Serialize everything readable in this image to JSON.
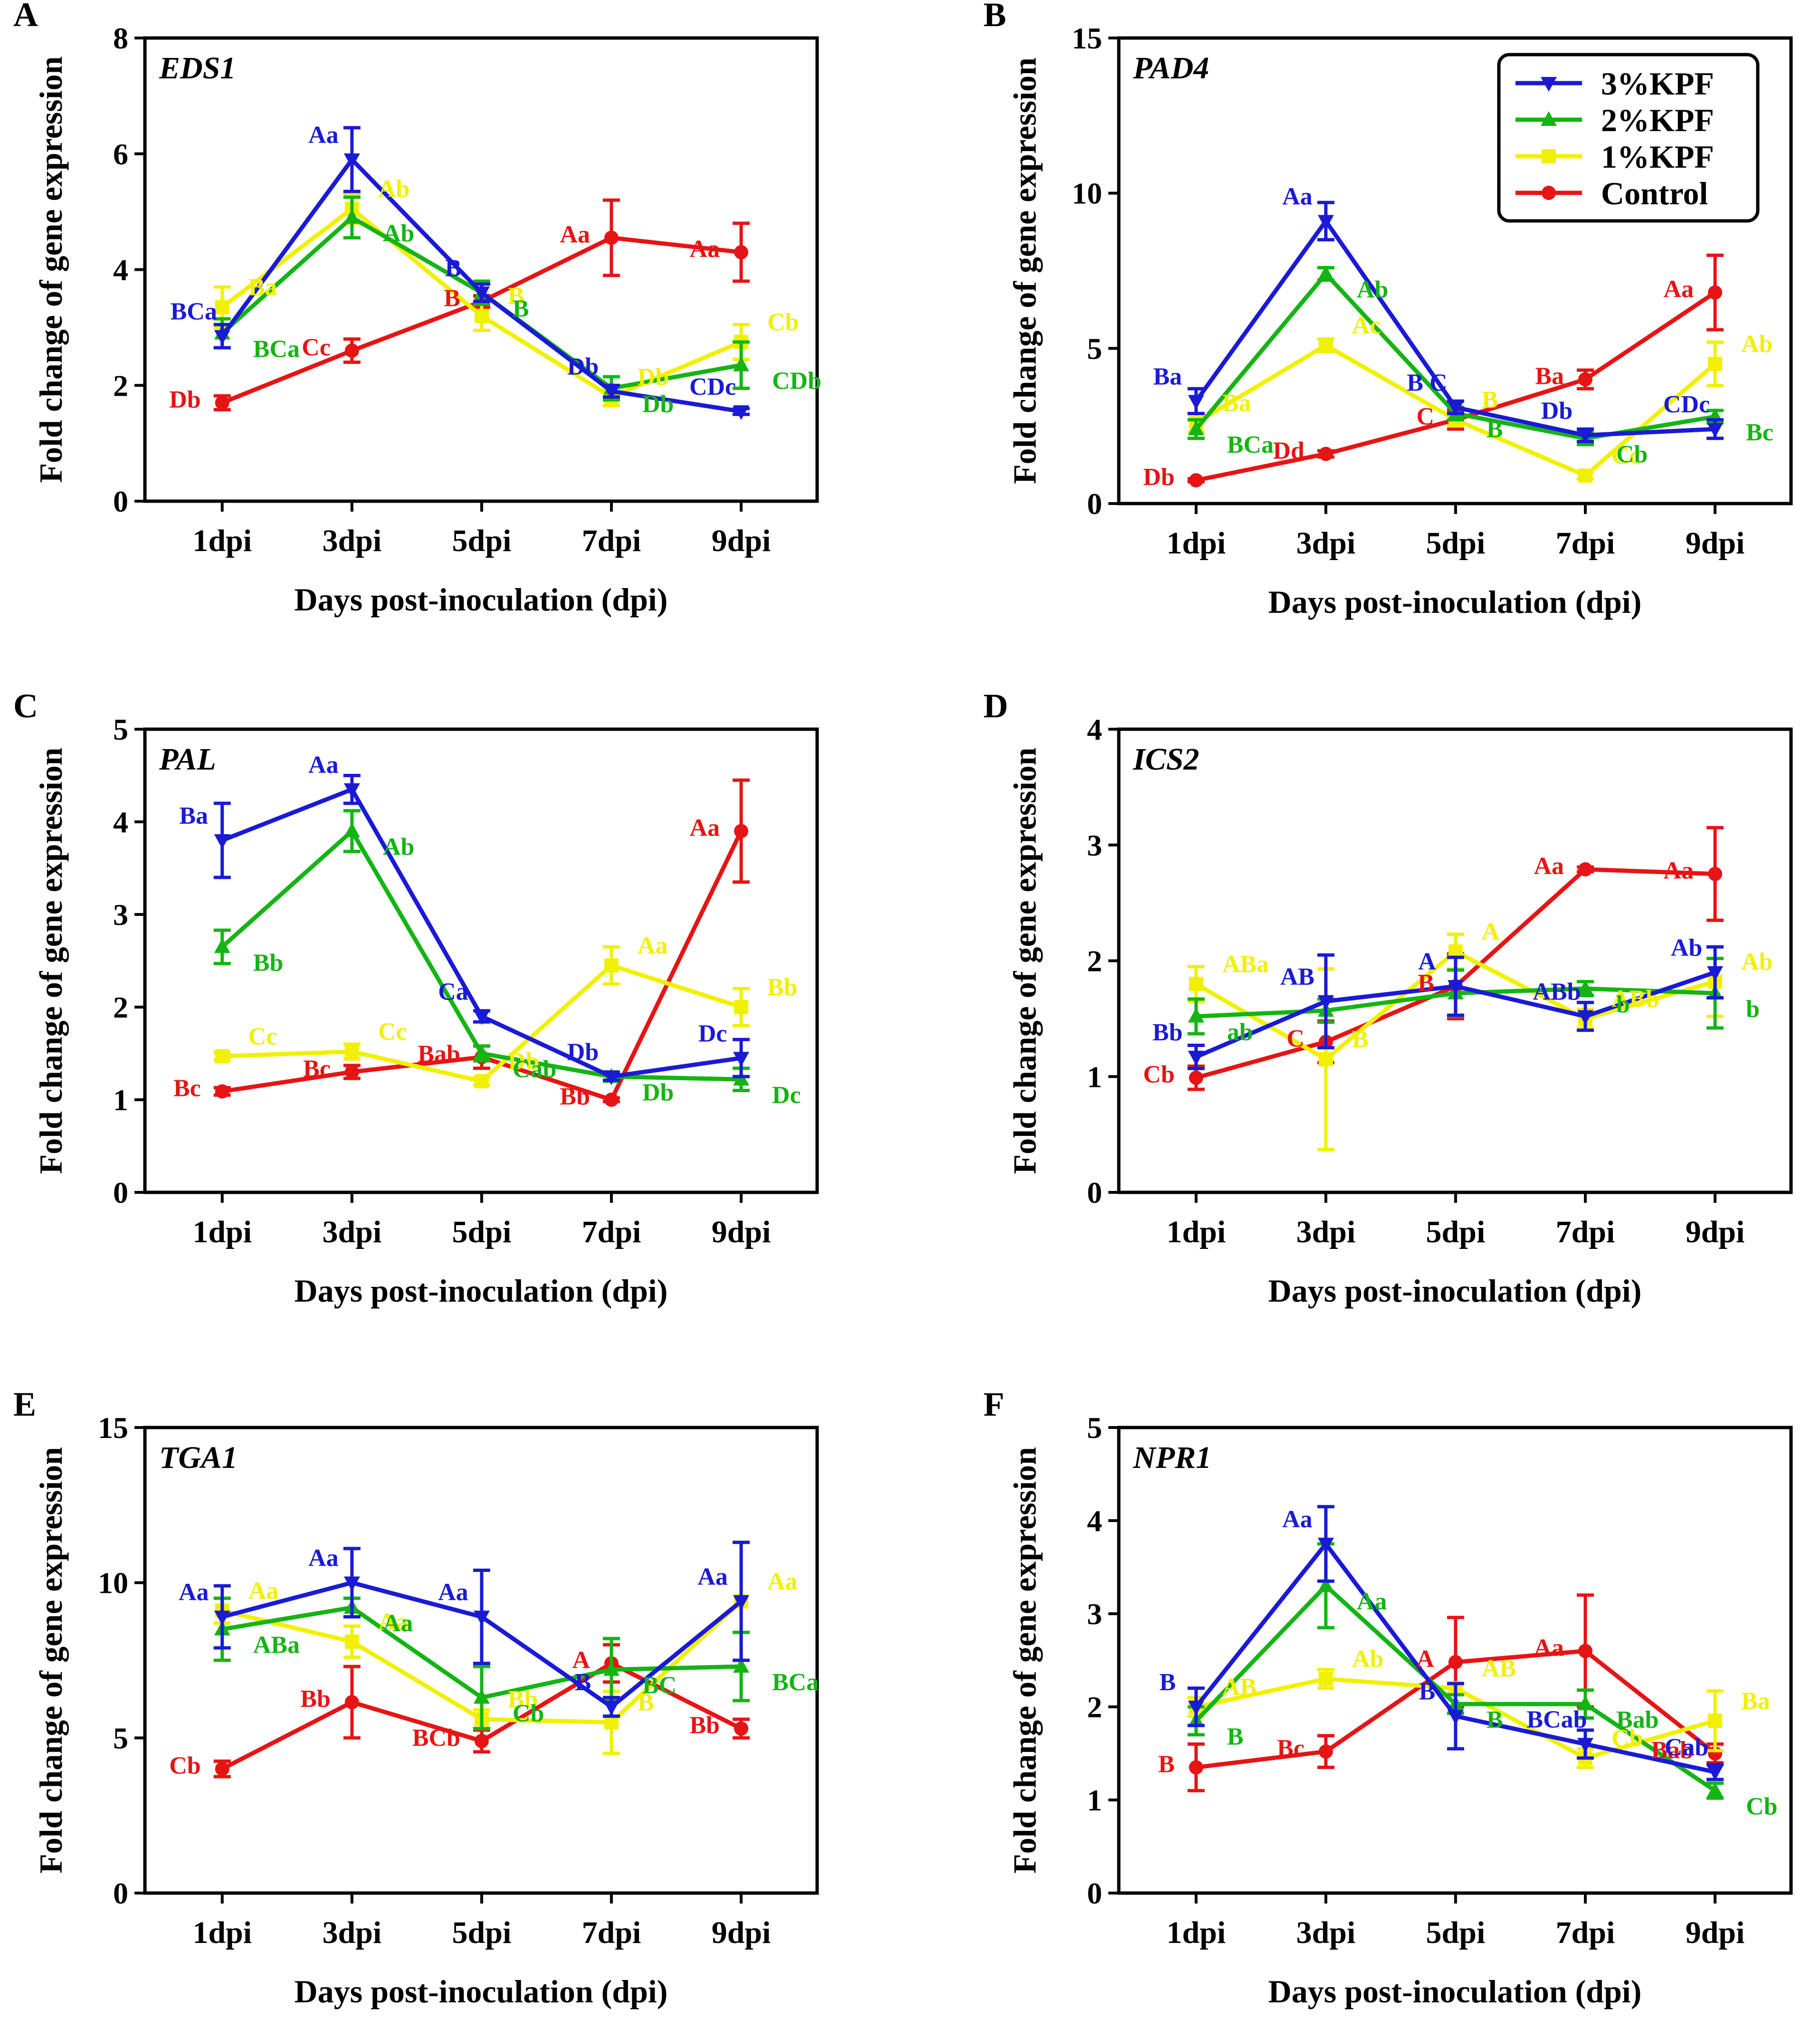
{
  "figure": {
    "x_axis_title": "Days post-inoculation (dpi)",
    "y_axis_title": "Fold change of gene expression",
    "categories": [
      "1dpi",
      "3dpi",
      "5dpi",
      "7dpi",
      "9dpi"
    ]
  },
  "series_meta": [
    {
      "key": "kpf3",
      "name": "3%KPF",
      "color": "#1a1ad6",
      "marker": "triangle-down"
    },
    {
      "key": "kpf2",
      "name": "2%KPF",
      "color": "#14b414",
      "marker": "triangle-up"
    },
    {
      "key": "kpf1",
      "name": "1%KPF",
      "color": "#f0f000",
      "marker": "square"
    },
    {
      "key": "ctrl",
      "name": "Control",
      "color": "#e61414",
      "marker": "circle"
    }
  ],
  "chart_data": [
    {
      "panel": "A",
      "gene": "EDS1",
      "type": "line",
      "ylim": [
        0,
        8
      ],
      "yticks": [
        0,
        2,
        4,
        6,
        8
      ],
      "legend": "",
      "series": [
        {
          "key": "kpf3",
          "values": [
            2.85,
            5.9,
            3.6,
            1.9,
            1.55
          ],
          "errors": [
            0.2,
            0.55,
            0.15,
            0.1,
            0.05
          ],
          "labels": [
            "BCa",
            "Aa",
            "B",
            "Db",
            "CDc"
          ]
        },
        {
          "key": "kpf2",
          "values": [
            2.9,
            4.9,
            3.6,
            1.95,
            2.35
          ],
          "errors": [
            0.25,
            0.35,
            0.2,
            0.2,
            0.4
          ],
          "labels": [
            "BCa",
            "Ab",
            "B",
            "Db",
            "CDb"
          ]
        },
        {
          "key": "kpf1",
          "values": [
            3.35,
            5.05,
            3.2,
            1.8,
            2.75
          ],
          "errors": [
            0.35,
            0.25,
            0.25,
            0.15,
            0.3
          ],
          "labels": [
            "Ba",
            "Ab",
            "B",
            "Db",
            "Cb"
          ]
        },
        {
          "key": "ctrl",
          "values": [
            1.7,
            2.6,
            3.45,
            4.55,
            4.3
          ],
          "errors": [
            0.12,
            0.2,
            0.1,
            0.65,
            0.5
          ],
          "labels": [
            "Db",
            "Cc",
            "B",
            "Aa",
            "Aa"
          ]
        }
      ]
    },
    {
      "panel": "B",
      "gene": "PAD4",
      "type": "line",
      "ylim": [
        0,
        15
      ],
      "yticks": [
        0,
        5,
        10,
        15
      ],
      "legend": "top-right",
      "series": [
        {
          "key": "kpf3",
          "values": [
            3.3,
            9.1,
            3.1,
            2.2,
            2.4
          ],
          "errors": [
            0.4,
            0.6,
            0.2,
            0.2,
            0.3
          ],
          "labels": [
            "Ba",
            "Aa",
            "B C",
            "Db",
            "CDc"
          ]
        },
        {
          "key": "kpf2",
          "values": [
            2.4,
            7.4,
            2.9,
            2.1,
            2.8
          ],
          "errors": [
            0.3,
            0.2,
            0.2,
            0.2,
            0.2
          ],
          "labels": [
            "BCa",
            "Ab",
            "B",
            "Cb",
            "Bc"
          ]
        },
        {
          "key": "kpf1",
          "values": [
            2.6,
            5.1,
            2.7,
            0.9,
            4.5
          ],
          "errors": [
            0.3,
            0.2,
            0.2,
            0.1,
            0.7
          ],
          "labels": [
            "Ba",
            "Ac",
            "B",
            "Cc",
            "Ab"
          ]
        },
        {
          "key": "ctrl",
          "values": [
            0.75,
            1.6,
            2.7,
            4.0,
            6.8
          ],
          "errors": [
            0.05,
            0.1,
            0.3,
            0.3,
            1.2
          ],
          "labels": [
            "Db",
            "Dd",
            "C",
            "Ba",
            "Aa"
          ]
        }
      ]
    },
    {
      "panel": "C",
      "gene": "PAL",
      "type": "line",
      "ylim": [
        0,
        5
      ],
      "yticks": [
        0,
        1,
        2,
        3,
        4,
        5
      ],
      "legend": "",
      "series": [
        {
          "key": "kpf3",
          "values": [
            3.8,
            4.35,
            1.9,
            1.25,
            1.45
          ],
          "errors": [
            0.4,
            0.15,
            0.06,
            0.04,
            0.2
          ],
          "labels": [
            "Ba",
            "Aa",
            "Ca",
            "Db",
            "Dc"
          ]
        },
        {
          "key": "kpf2",
          "values": [
            2.65,
            3.9,
            1.5,
            1.25,
            1.22
          ],
          "errors": [
            0.18,
            0.22,
            0.08,
            0.05,
            0.12
          ],
          "labels": [
            "Bb",
            "Ab",
            "Cab",
            "Db",
            "Dc"
          ]
        },
        {
          "key": "kpf1",
          "values": [
            1.47,
            1.52,
            1.2,
            2.45,
            2.0
          ],
          "errors": [
            0.04,
            0.08,
            0.04,
            0.2,
            0.2
          ],
          "labels": [
            "Cc",
            "Cc",
            "Db",
            "Aa",
            "Bb"
          ]
        },
        {
          "key": "ctrl",
          "values": [
            1.09,
            1.3,
            1.46,
            1.0,
            3.9
          ],
          "errors": [
            0.04,
            0.07,
            0.12,
            0.02,
            0.55
          ],
          "labels": [
            "Bc",
            "Bc",
            "Bab",
            "Bb",
            "Aa"
          ]
        }
      ]
    },
    {
      "panel": "D",
      "gene": "ICS2",
      "type": "line",
      "ylim": [
        0,
        4
      ],
      "yticks": [
        0,
        1,
        2,
        3,
        4
      ],
      "legend": "",
      "series": [
        {
          "key": "kpf3",
          "values": [
            1.17,
            1.65,
            1.78,
            1.52,
            1.9
          ],
          "errors": [
            0.1,
            0.4,
            0.25,
            0.12,
            0.22
          ],
          "labels": [
            "Bb",
            "AB",
            "A",
            "ABb",
            "Ab"
          ]
        },
        {
          "key": "kpf2",
          "values": [
            1.52,
            1.57,
            1.72,
            1.76,
            1.72
          ],
          "errors": [
            0.15,
            0.1,
            0.2,
            0.06,
            0.3
          ],
          "labels": [
            "ab",
            "",
            "",
            "b",
            "b"
          ]
        },
        {
          "key": "kpf1",
          "values": [
            1.8,
            1.15,
            2.08,
            1.5,
            1.82
          ],
          "errors": [
            0.15,
            0.78,
            0.15,
            0.08,
            0.3
          ],
          "labels": [
            "ABa",
            "B",
            "A",
            "ABb",
            "Ab"
          ]
        },
        {
          "key": "ctrl",
          "values": [
            0.99,
            1.3,
            1.78,
            2.79,
            2.75
          ],
          "errors": [
            0.1,
            0.18,
            0.28,
            0.02,
            0.4
          ],
          "labels": [
            "Cb",
            "C",
            "B",
            "Aa",
            "Aa"
          ]
        }
      ]
    },
    {
      "panel": "E",
      "gene": "TGA1",
      "type": "line",
      "ylim": [
        0,
        15
      ],
      "yticks": [
        0,
        5,
        10,
        15
      ],
      "legend": "",
      "series": [
        {
          "key": "kpf3",
          "values": [
            8.9,
            10.0,
            8.9,
            6.0,
            9.4
          ],
          "errors": [
            1.0,
            1.1,
            1.5,
            0.3,
            1.9
          ],
          "labels": [
            "Aa",
            "Aa",
            "Aa",
            "B",
            "Aa"
          ]
        },
        {
          "key": "kpf2",
          "values": [
            8.5,
            9.2,
            6.3,
            7.2,
            7.3
          ],
          "errors": [
            1.0,
            0.3,
            1.0,
            1.0,
            1.1
          ],
          "labels": [
            "ABa",
            "Aa",
            "Cb",
            "BC",
            "BCa"
          ]
        },
        {
          "key": "kpf1",
          "values": [
            9.1,
            8.1,
            5.6,
            5.5,
            9.4
          ],
          "errors": [
            0.4,
            0.5,
            0.3,
            1.0,
            1.9
          ],
          "labels": [
            "Aa",
            "Aa",
            "Bb",
            "B",
            "Aa"
          ]
        },
        {
          "key": "ctrl",
          "values": [
            4.0,
            6.15,
            4.9,
            7.4,
            5.3
          ],
          "errors": [
            0.25,
            1.15,
            0.35,
            0.6,
            0.3
          ],
          "labels": [
            "Cb",
            "Bb",
            "BCb",
            "A",
            "Bb"
          ]
        }
      ]
    },
    {
      "panel": "F",
      "gene": "NPR1",
      "type": "line",
      "ylim": [
        0,
        5
      ],
      "yticks": [
        0,
        1,
        2,
        3,
        4,
        5
      ],
      "legend": "",
      "series": [
        {
          "key": "kpf3",
          "values": [
            2.0,
            3.75,
            1.9,
            1.6,
            1.3
          ],
          "errors": [
            0.2,
            0.4,
            0.35,
            0.15,
            0.08
          ],
          "labels": [
            "B",
            "Aa",
            "B",
            "BCab",
            "Cab"
          ]
        },
        {
          "key": "kpf2",
          "values": [
            1.85,
            3.3,
            2.03,
            2.03,
            1.1
          ],
          "errors": [
            0.15,
            0.45,
            0.1,
            0.15,
            0.08
          ],
          "labels": [
            "B",
            "Aa",
            "B",
            "Bab",
            "Cb"
          ]
        },
        {
          "key": "kpf1",
          "values": [
            2.0,
            2.3,
            2.2,
            1.45,
            1.85
          ],
          "errors": [
            0.1,
            0.1,
            0.05,
            0.1,
            0.32
          ],
          "labels": [
            "AB",
            "Ab",
            "AB",
            "Cb",
            "Ba"
          ]
        },
        {
          "key": "ctrl",
          "values": [
            1.35,
            1.52,
            2.48,
            2.6,
            1.5
          ],
          "errors": [
            0.25,
            0.17,
            0.48,
            0.6,
            0.1
          ],
          "labels": [
            "B",
            "Bc",
            "A",
            "Aa",
            "Bab"
          ]
        }
      ]
    }
  ]
}
